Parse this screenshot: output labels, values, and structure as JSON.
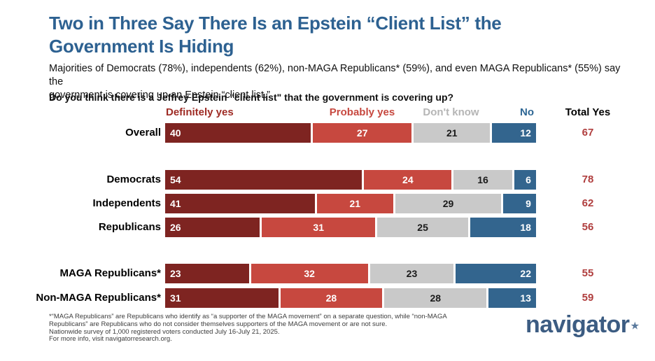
{
  "title_lines": [
    "Two in Three Say There Is an Epstein “Client List” the",
    "Government Is Hiding"
  ],
  "subtitle_lines": [
    "Majorities of Democrats (78%), independents (62%), non-MAGA Republicans* (59%), and even MAGA Republicans* (55%) say the",
    "government is covering up an Epstein “client list.”"
  ],
  "question": "Do you think there is a Jeffrey Epstein \"client list\" that the government is covering up?",
  "chart_data": {
    "type": "bar",
    "stacked": true,
    "orientation": "horizontal",
    "unit": "percent",
    "xlim": [
      0,
      100
    ],
    "categories": [
      "Overall",
      "Democrats",
      "Independents",
      "Republicans",
      "MAGA Republicans*",
      "Non-MAGA Republicans*"
    ],
    "series": [
      {
        "name": "Definitely yes",
        "color": "#7e2421",
        "header_color": "#9e2b24",
        "values": [
          40,
          54,
          41,
          26,
          23,
          31
        ]
      },
      {
        "name": "Probably yes",
        "color": "#c7483f",
        "header_color": "#c7483f",
        "values": [
          27,
          24,
          21,
          31,
          32,
          28
        ]
      },
      {
        "name": "Don't know",
        "color": "#c9c9c9",
        "header_color": "#b5b5b5",
        "values": [
          21,
          16,
          29,
          25,
          23,
          28
        ]
      },
      {
        "name": "No",
        "color": "#33658e",
        "header_color": "#2d6694",
        "values": [
          12,
          6,
          9,
          18,
          22,
          13
        ]
      }
    ],
    "total_yes_label": "Total Yes",
    "total_yes_color": "#b03e3e",
    "total_yes": [
      67,
      78,
      62,
      56,
      55,
      59
    ],
    "group_gaps_after": [
      "Overall",
      "Republicans"
    ],
    "legend_position": "top"
  },
  "footnote_lines": [
    "*“MAGA Republicans” are Republicans who identify as “a supporter of the MAGA movement” on a separate question, while “non-MAGA",
    "Republicans” are Republicans who do not consider themselves supporters of the MAGA movement or are not sure.",
    "Nationwide survey of 1,000 registered voters conducted July 16-July 21, 2025.",
    "For more info, visit navigatorresearch.org."
  ],
  "logo": {
    "text": "navigator",
    "star": "★"
  }
}
